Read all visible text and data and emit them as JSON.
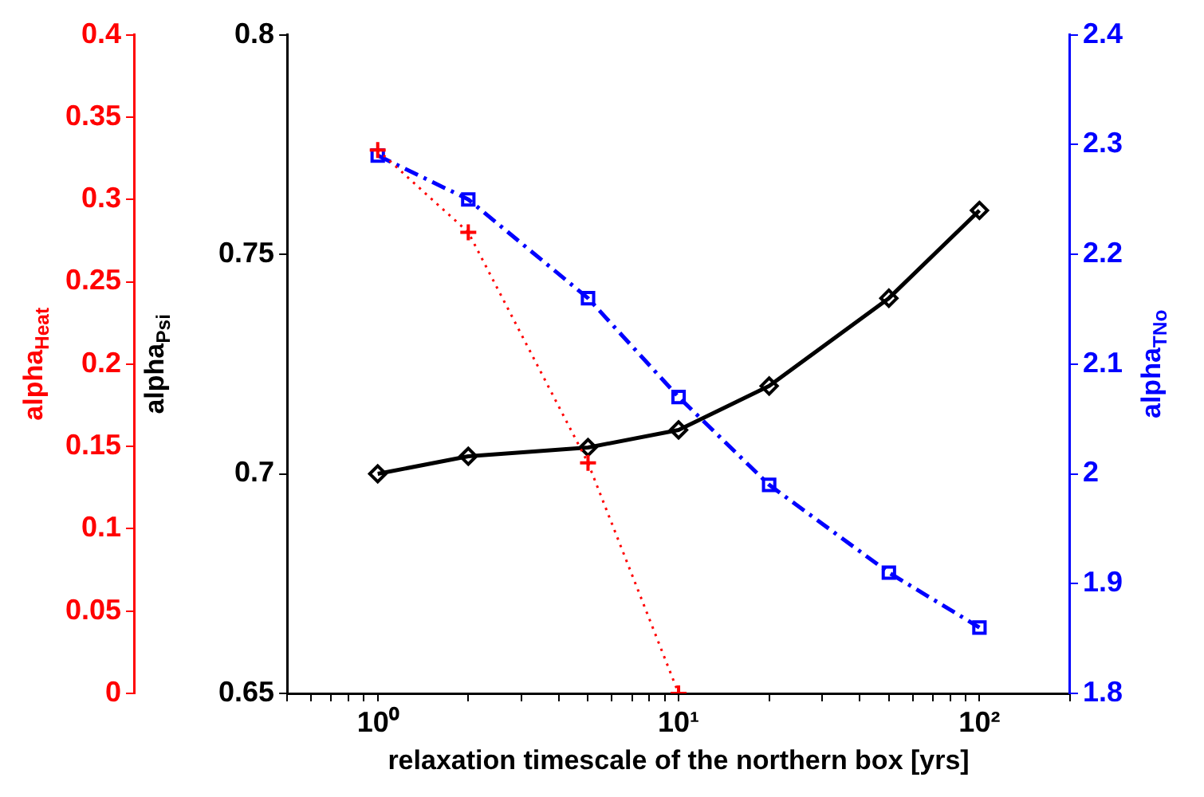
{
  "chart_data": {
    "type": "line",
    "xlabel": "relaxation timescale of the northern box [yrs]",
    "ylabel": "alpha$_{Psi}$",
    "y2label": "alpha$_{T}$$_{No}$",
    "y3label": "alpha$_{Heat}$",
    "x": [
      1,
      2,
      5,
      10,
      20,
      50,
      100
    ],
    "log": "x",
    "grid": false,
    "legend": false,
    "xlim": [
      0.5,
      200
    ],
    "xticks": [
      {
        "value": 0.5,
        "label": null
      },
      {
        "value": 0.6,
        "label": null
      },
      {
        "value": 0.7,
        "label": null
      },
      {
        "value": 0.8,
        "label": null
      },
      {
        "value": 0.9,
        "label": null
      },
      {
        "value": 1,
        "label": "10⁰"
      },
      {
        "value": 2,
        "label": null
      },
      {
        "value": 3,
        "label": null
      },
      {
        "value": 4,
        "label": null
      },
      {
        "value": 5,
        "label": null
      },
      {
        "value": 6,
        "label": null
      },
      {
        "value": 7,
        "label": null
      },
      {
        "value": 8,
        "label": null
      },
      {
        "value": 9,
        "label": null
      },
      {
        "value": 10,
        "label": "10¹"
      },
      {
        "value": 20,
        "label": null
      },
      {
        "value": 30,
        "label": null
      },
      {
        "value": 40,
        "label": null
      },
      {
        "value": 50,
        "label": null
      },
      {
        "value": 60,
        "label": null
      },
      {
        "value": 70,
        "label": null
      },
      {
        "value": 80,
        "label": null
      },
      {
        "value": 90,
        "label": null
      },
      {
        "value": 100,
        "label": "10²"
      },
      {
        "value": 200,
        "label": null
      }
    ],
    "ylim": [
      0.65,
      0.8
    ],
    "yticks": [
      0.65,
      0.7,
      0.75,
      0.8
    ],
    "y2lim": [
      1.8,
      2.4
    ],
    "y2ticks": [
      1.8,
      1.9,
      2,
      2.1,
      2.2,
      2.3,
      2.4
    ],
    "y3lim": [
      0,
      0.4
    ],
    "y3ticks": [
      0,
      0.05,
      0.1,
      0.15,
      0.2,
      0.25,
      0.3,
      0.35,
      0.4
    ],
    "series": [
      {
        "color": "#ff0000",
        "axis": "y3",
        "marker": "cross",
        "line_style": "dotted",
        "values": [
          0.33,
          0.28,
          0.14,
          0,
          null,
          null,
          null
        ]
      },
      {
        "color": "#000000",
        "axis": "y",
        "marker": "diamond",
        "line_style": "solid",
        "values": [
          0.7,
          0.704,
          0.706,
          0.71,
          0.72,
          0.74,
          0.76
        ]
      },
      {
        "color": "#0000ff",
        "axis": "y2",
        "marker": "square",
        "line_style": "dashed",
        "values": [
          2.29,
          2.25,
          2.16,
          2.07,
          1.99,
          1.91,
          1.86
        ]
      }
    ]
  }
}
